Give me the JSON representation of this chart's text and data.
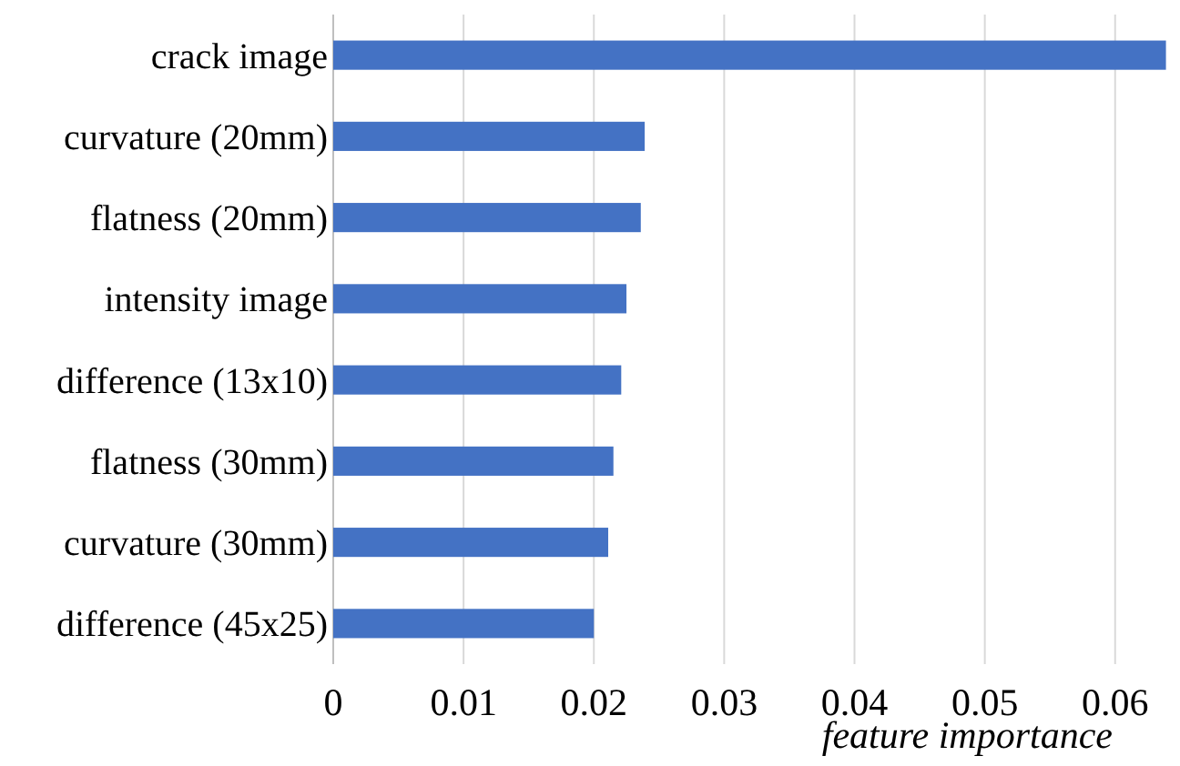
{
  "chart_data": {
    "type": "bar",
    "orientation": "horizontal",
    "xlabel": "feature importance",
    "categories": [
      "crack image",
      "curvature (20mm)",
      "flatness (20mm)",
      "intensity image",
      "difference (13x10)",
      "flatness (30mm)",
      "curvature (30mm)",
      "difference (45x25)"
    ],
    "values": [
      0.0639,
      0.0239,
      0.0236,
      0.0225,
      0.0221,
      0.0215,
      0.0211,
      0.02
    ],
    "color": "#4472c4",
    "xlim": [
      0,
      0.064
    ],
    "xticks": [
      0,
      0.01,
      0.02,
      0.03,
      0.04,
      0.05,
      0.06
    ],
    "grid": "x"
  }
}
